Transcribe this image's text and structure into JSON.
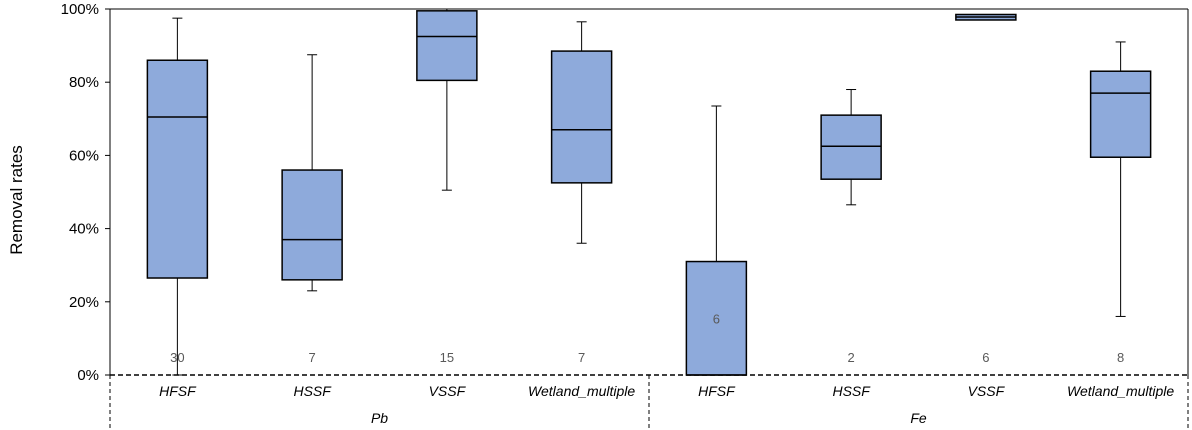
{
  "chart_data": {
    "type": "boxplot",
    "ylabel": "Removal rates",
    "ylim": [
      0,
      100
    ],
    "yticks": [
      0,
      20,
      40,
      60,
      80,
      100
    ],
    "ytick_labels": [
      "0%",
      "20%",
      "40%",
      "60%",
      "80%",
      "100%"
    ],
    "grid": false,
    "groups": [
      {
        "name": "Pb",
        "boxes": [
          {
            "category": "HFSF",
            "n": "30",
            "min": 0,
            "q1": 26.5,
            "median": 70.5,
            "q3": 86,
            "max": 97.5
          },
          {
            "category": "HSSF",
            "n": "7",
            "min": 23,
            "q1": 26,
            "median": 37,
            "q3": 56,
            "max": 87.5
          },
          {
            "category": "VSSF",
            "n": "15",
            "min": 50.5,
            "q1": 80.5,
            "median": 92.5,
            "q3": 99.5,
            "max": 100
          },
          {
            "category": "Wetland_multiple",
            "n": "7",
            "min": 36,
            "q1": 52.5,
            "median": 67,
            "q3": 88.5,
            "max": 96.5
          }
        ]
      },
      {
        "name": "Fe",
        "boxes": [
          {
            "category": "HFSF",
            "n": "6",
            "min": 0,
            "q1": 0,
            "median": 0,
            "q3": 31,
            "max": 73.5
          },
          {
            "category": "HSSF",
            "n": "2",
            "min": 46.5,
            "q1": 53.5,
            "median": 62.5,
            "q3": 71,
            "max": 78
          },
          {
            "category": "VSSF",
            "n": "6",
            "min": 97,
            "q1": 97,
            "median": 97.8,
            "q3": 98.5,
            "max": 98.5
          },
          {
            "category": "Wetland_multiple",
            "n": "8",
            "min": 16,
            "q1": 59.5,
            "median": 77,
            "q3": 83,
            "max": 91
          }
        ]
      }
    ],
    "colors": {
      "box_fill": "#8eaadb",
      "box_stroke": "#000000",
      "n_label": "#595959"
    }
  }
}
